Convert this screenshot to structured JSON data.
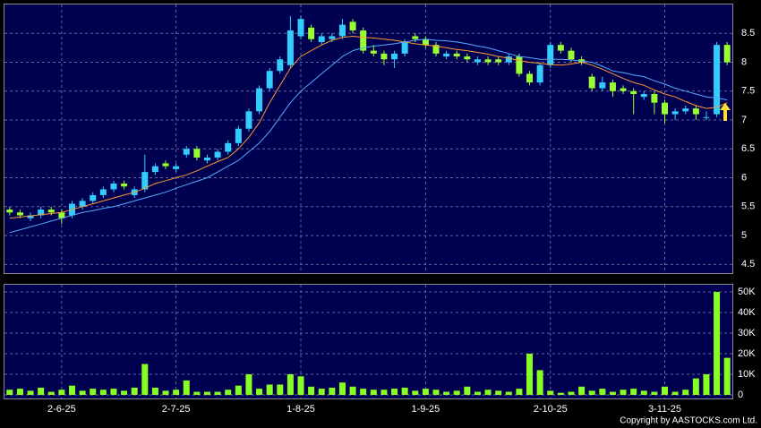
{
  "chart_data": {
    "type": "candlestick",
    "up_color": "#33ccff",
    "down_color": "#99ff33",
    "xlim": [
      -0.5,
      69.5
    ],
    "xticks": [
      {
        "value": 5,
        "label": "2-6-25"
      },
      {
        "value": 16,
        "label": "2-7-25"
      },
      {
        "value": 28,
        "label": "1-8-25"
      },
      {
        "value": 40,
        "label": "1-9-25"
      },
      {
        "value": 52,
        "label": "2-10-25"
      },
      {
        "value": 63,
        "label": "3-11-25"
      }
    ],
    "ylim": [
      4.35,
      9.0
    ],
    "yticks": [
      4.5,
      5,
      5.5,
      6,
      6.5,
      7,
      7.5,
      8,
      8.5
    ],
    "grid": true,
    "open": [
      5.45,
      5.4,
      5.3,
      5.35,
      5.45,
      5.4,
      5.35,
      5.5,
      5.6,
      5.7,
      5.8,
      5.9,
      5.7,
      5.8,
      6.1,
      6.25,
      6.15,
      6.4,
      6.5,
      6.3,
      6.35,
      6.45,
      6.6,
      6.85,
      7.15,
      7.55,
      7.85,
      7.95,
      8.45,
      8.6,
      8.35,
      8.4,
      8.45,
      8.7,
      8.55,
      8.2,
      8.15,
      8.05,
      8.15,
      8.45,
      8.4,
      8.3,
      8.1,
      8.15,
      8.1,
      8.0,
      8.05,
      8.05,
      8.0,
      8.1,
      7.8,
      7.65,
      7.95,
      8.3,
      8.2,
      8.05,
      7.75,
      7.55,
      7.65,
      7.55,
      7.5,
      7.4,
      7.45,
      7.3,
      7.1,
      7.15,
      7.2,
      7.05,
      7.1,
      8.3
    ],
    "high": [
      5.5,
      5.45,
      5.4,
      5.5,
      5.5,
      5.45,
      5.6,
      5.65,
      5.75,
      5.85,
      5.95,
      5.95,
      5.85,
      6.4,
      6.25,
      6.3,
      6.25,
      6.55,
      6.55,
      6.4,
      6.5,
      6.65,
      6.9,
      7.2,
      7.6,
      7.9,
      8.1,
      8.8,
      8.8,
      8.65,
      8.5,
      8.5,
      8.75,
      8.75,
      8.6,
      8.3,
      8.2,
      8.2,
      8.4,
      8.5,
      8.45,
      8.35,
      8.2,
      8.2,
      8.15,
      8.1,
      8.1,
      8.1,
      8.15,
      8.15,
      7.85,
      8.0,
      8.35,
      8.35,
      8.25,
      8.1,
      7.8,
      7.75,
      7.7,
      7.6,
      7.55,
      7.5,
      7.5,
      7.35,
      7.2,
      7.25,
      7.25,
      7.15,
      8.35,
      8.35
    ],
    "low": [
      5.35,
      5.3,
      5.25,
      5.3,
      5.35,
      5.2,
      5.3,
      5.45,
      5.55,
      5.65,
      5.75,
      5.8,
      5.65,
      5.75,
      6.05,
      6.15,
      6.1,
      6.35,
      6.3,
      6.25,
      6.3,
      6.4,
      6.55,
      6.8,
      7.1,
      7.5,
      7.8,
      7.9,
      8.4,
      8.35,
      8.3,
      8.35,
      8.4,
      8.5,
      8.15,
      8.1,
      7.95,
      7.9,
      8.1,
      8.35,
      8.25,
      8.1,
      8.05,
      8.05,
      8.0,
      7.95,
      7.95,
      7.95,
      7.95,
      7.75,
      7.6,
      7.6,
      7.9,
      8.15,
      8.0,
      7.95,
      7.5,
      7.5,
      7.4,
      7.45,
      7.1,
      7.35,
      7.1,
      6.95,
      7.0,
      7.1,
      7.0,
      7.0,
      7.05,
      7.95
    ],
    "close": [
      5.4,
      5.35,
      5.35,
      5.45,
      5.4,
      5.3,
      5.55,
      5.6,
      5.7,
      5.8,
      5.9,
      5.85,
      5.8,
      6.1,
      6.2,
      6.2,
      6.2,
      6.5,
      6.35,
      6.35,
      6.45,
      6.6,
      6.85,
      7.15,
      7.55,
      7.85,
      8.05,
      8.55,
      8.75,
      8.4,
      8.45,
      8.45,
      8.65,
      8.55,
      8.2,
      8.15,
      8.05,
      8.15,
      8.35,
      8.4,
      8.3,
      8.15,
      8.15,
      8.1,
      8.05,
      8.05,
      8.0,
      8.0,
      8.1,
      7.8,
      7.65,
      7.95,
      8.3,
      8.2,
      8.05,
      8.0,
      7.55,
      7.65,
      7.5,
      7.5,
      7.45,
      7.45,
      7.3,
      7.1,
      7.15,
      7.2,
      7.1,
      7.05,
      8.3,
      8.0
    ],
    "series": [
      {
        "color": "#ff9933",
        "values": [
          5.3,
          5.32,
          5.34,
          5.36,
          5.38,
          5.4,
          5.45,
          5.5,
          5.55,
          5.6,
          5.65,
          5.7,
          5.75,
          5.82,
          5.9,
          5.95,
          6.0,
          6.05,
          6.12,
          6.2,
          6.28,
          6.35,
          6.5,
          6.7,
          6.95,
          7.3,
          7.6,
          7.9,
          8.1,
          8.2,
          8.3,
          8.38,
          8.43,
          8.45,
          8.43,
          8.42,
          8.4,
          8.38,
          8.35,
          8.32,
          8.3,
          8.28,
          8.25,
          8.22,
          8.2,
          8.17,
          8.14,
          8.1,
          8.07,
          8.03,
          8.0,
          7.98,
          7.96,
          7.95,
          7.97,
          8.0,
          7.95,
          7.88,
          7.8,
          7.72,
          7.65,
          7.6,
          7.52,
          7.45,
          7.4,
          7.32,
          7.25,
          7.2,
          7.22,
          7.3
        ]
      },
      {
        "color": "#55aaff",
        "values": [
          5.05,
          5.1,
          5.15,
          5.2,
          5.25,
          5.3,
          5.35,
          5.4,
          5.43,
          5.47,
          5.5,
          5.55,
          5.6,
          5.65,
          5.7,
          5.75,
          5.82,
          5.88,
          5.94,
          6.0,
          6.1,
          6.2,
          6.3,
          6.45,
          6.6,
          6.8,
          7.05,
          7.3,
          7.5,
          7.65,
          7.8,
          7.95,
          8.1,
          8.2,
          8.25,
          8.28,
          8.3,
          8.32,
          8.35,
          8.38,
          8.4,
          8.38,
          8.37,
          8.35,
          8.32,
          8.28,
          8.25,
          8.2,
          8.15,
          8.1,
          8.08,
          8.05,
          8.05,
          8.05,
          8.04,
          8.02,
          8.0,
          7.93,
          7.85,
          7.82,
          7.78,
          7.75,
          7.68,
          7.62,
          7.55,
          7.5,
          7.45,
          7.4,
          7.38,
          7.35
        ]
      }
    ],
    "volume": {
      "color": "#88ff22",
      "ylim": [
        0,
        53500
      ],
      "yticks": [
        0,
        {
          "value": 10000,
          "label": "10K"
        },
        {
          "value": 20000,
          "label": "20K"
        },
        {
          "value": 30000,
          "label": "30K"
        },
        {
          "value": 40000,
          "label": "40K"
        },
        {
          "value": 50000,
          "label": "50K"
        }
      ],
      "values": [
        2500,
        3000,
        2000,
        3500,
        1500,
        2500,
        4500,
        2000,
        3000,
        2500,
        3000,
        2000,
        3500,
        15000,
        3500,
        2000,
        2500,
        7000,
        1500,
        1500,
        1500,
        2500,
        4500,
        10000,
        3000,
        5000,
        5000,
        10000,
        9000,
        4000,
        3000,
        3500,
        6000,
        4000,
        3000,
        2500,
        2500,
        3000,
        3500,
        2000,
        3000,
        2500,
        1500,
        2000,
        4000,
        1500,
        2500,
        2000,
        1500,
        3000,
        20000,
        12000,
        2000,
        1000,
        1500,
        4000,
        2000,
        3000,
        1500,
        2500,
        3000,
        2000,
        1500,
        4000,
        1500,
        2500,
        8000,
        10000,
        50000,
        18000
      ]
    },
    "copyright": "Copyright by AASTOCKS.com Ltd."
  }
}
